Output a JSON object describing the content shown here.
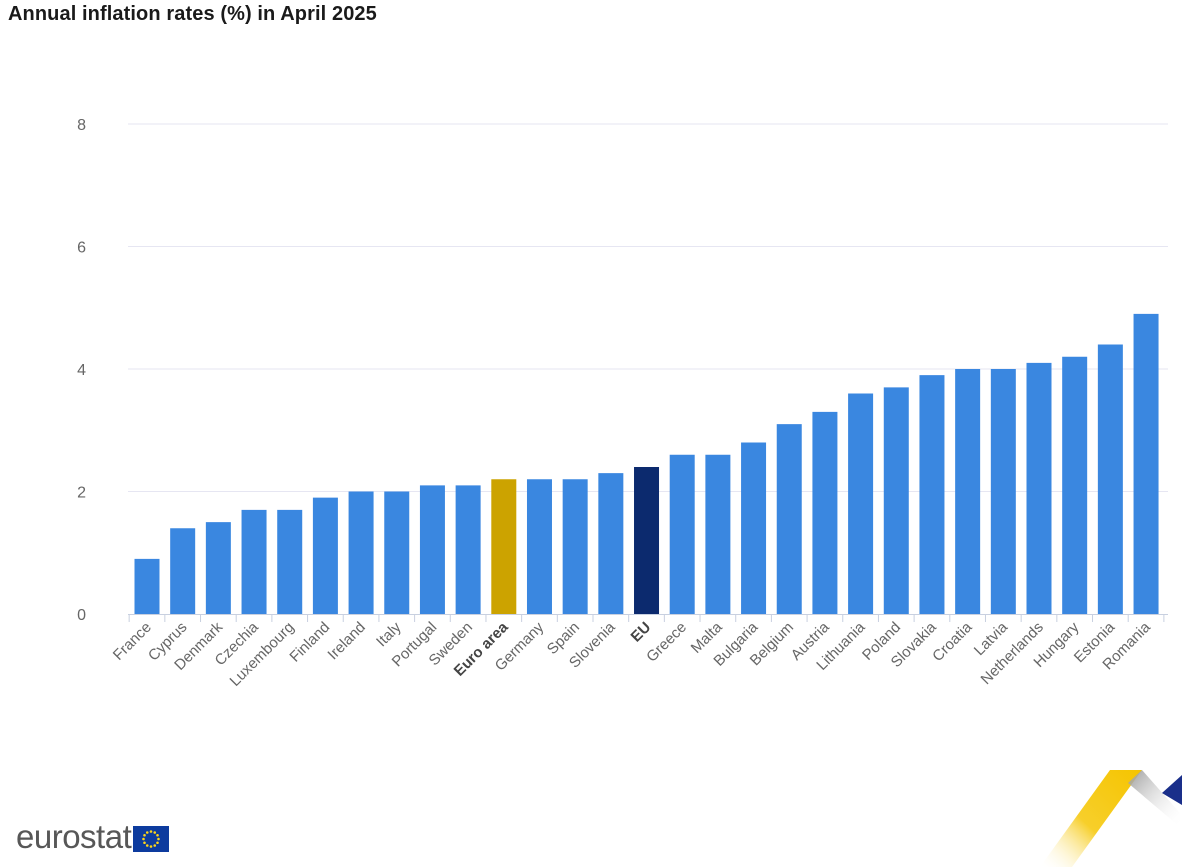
{
  "title": "Annual inflation rates (%) in April 2025",
  "brand": {
    "logo_text": "eurostat",
    "flag_icon": "eu-flag-icon"
  },
  "colors": {
    "country": "#3a87e0",
    "euro_area": "#cca300",
    "eu": "#0c2a6e",
    "gridline": "#e6e6f2",
    "axis": "#c8d0e0",
    "label": "#666666"
  },
  "chart_data": {
    "type": "bar",
    "title": "Annual inflation rates (%) in April 2025",
    "xlabel": "",
    "ylabel": "",
    "ylim": [
      0,
      8
    ],
    "yticks": [
      0,
      2,
      4,
      6,
      8
    ],
    "grid": true,
    "categories": [
      "France",
      "Cyprus",
      "Denmark",
      "Czechia",
      "Luxembourg",
      "Finland",
      "Ireland",
      "Italy",
      "Portugal",
      "Sweden",
      "Euro area",
      "Germany",
      "Spain",
      "Slovenia",
      "EU",
      "Greece",
      "Malta",
      "Bulgaria",
      "Belgium",
      "Austria",
      "Lithuania",
      "Poland",
      "Slovakia",
      "Croatia",
      "Latvia",
      "Netherlands",
      "Hungary",
      "Estonia",
      "Romania"
    ],
    "values": [
      0.9,
      1.4,
      1.5,
      1.7,
      1.7,
      1.9,
      2.0,
      2.0,
      2.1,
      2.1,
      2.2,
      2.2,
      2.2,
      2.3,
      2.4,
      2.6,
      2.6,
      2.8,
      3.1,
      3.3,
      3.6,
      3.7,
      3.9,
      4.0,
      4.0,
      4.1,
      4.2,
      4.4,
      4.9
    ],
    "highlight": {
      "Euro area": "euro_area",
      "EU": "eu"
    }
  }
}
